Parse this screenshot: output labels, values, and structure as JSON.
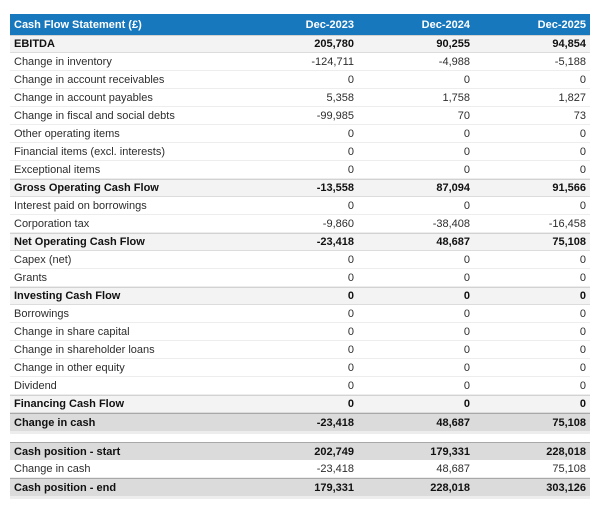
{
  "header": {
    "title": "Cash Flow Statement (£)",
    "columns": [
      "Dec-2023",
      "Dec-2024",
      "Dec-2025"
    ]
  },
  "colors": {
    "header_bg": "#1878be",
    "header_text": "#ffffff",
    "subtotal_row_bg": "#f3f3f3",
    "total_row_bg": "#dbdbdb",
    "body_text": "#2d2d2d"
  },
  "table": {
    "rows": [
      {
        "label": "EBITDA",
        "values": [
          "205,780",
          "90,255",
          "94,854"
        ],
        "style": "subtotal"
      },
      {
        "label": "Change in inventory",
        "values": [
          "-124,711",
          "-4,988",
          "-5,188"
        ],
        "style": "normal"
      },
      {
        "label": "Change in account receivables",
        "values": [
          "0",
          "0",
          "0"
        ],
        "style": "normal"
      },
      {
        "label": "Change in account payables",
        "values": [
          "5,358",
          "1,758",
          "1,827"
        ],
        "style": "normal"
      },
      {
        "label": "Change in fiscal and social debts",
        "values": [
          "-99,985",
          "70",
          "73"
        ],
        "style": "normal"
      },
      {
        "label": "Other operating items",
        "values": [
          "0",
          "0",
          "0"
        ],
        "style": "normal"
      },
      {
        "label": "Financial items (excl. interests)",
        "values": [
          "0",
          "0",
          "0"
        ],
        "style": "normal"
      },
      {
        "label": "Exceptional items",
        "values": [
          "0",
          "0",
          "0"
        ],
        "style": "normal"
      },
      {
        "label": "Gross Operating Cash Flow",
        "values": [
          "-13,558",
          "87,094",
          "91,566"
        ],
        "style": "subtotal"
      },
      {
        "label": "Interest paid on borrowings",
        "values": [
          "0",
          "0",
          "0"
        ],
        "style": "normal"
      },
      {
        "label": "Corporation tax",
        "values": [
          "-9,860",
          "-38,408",
          "-16,458"
        ],
        "style": "normal"
      },
      {
        "label": "Net Operating Cash Flow",
        "values": [
          "-23,418",
          "48,687",
          "75,108"
        ],
        "style": "subtotal"
      },
      {
        "label": "Capex (net)",
        "values": [
          "0",
          "0",
          "0"
        ],
        "style": "normal"
      },
      {
        "label": "Grants",
        "values": [
          "0",
          "0",
          "0"
        ],
        "style": "normal"
      },
      {
        "label": "Investing Cash Flow",
        "values": [
          "0",
          "0",
          "0"
        ],
        "style": "subtotal"
      },
      {
        "label": "Borrowings",
        "values": [
          "0",
          "0",
          "0"
        ],
        "style": "normal"
      },
      {
        "label": "Change in share capital",
        "values": [
          "0",
          "0",
          "0"
        ],
        "style": "normal"
      },
      {
        "label": "Change in shareholder loans",
        "values": [
          "0",
          "0",
          "0"
        ],
        "style": "normal"
      },
      {
        "label": "Change in other equity",
        "values": [
          "0",
          "0",
          "0"
        ],
        "style": "normal"
      },
      {
        "label": "Dividend",
        "values": [
          "0",
          "0",
          "0"
        ],
        "style": "normal"
      },
      {
        "label": "Financing Cash Flow",
        "values": [
          "0",
          "0",
          "0"
        ],
        "style": "subtotal"
      },
      {
        "label": "Change in cash",
        "values": [
          "-23,418",
          "48,687",
          "75,108"
        ],
        "style": "total"
      }
    ]
  },
  "summary": {
    "rows": [
      {
        "label": "Cash position - start",
        "values": [
          "202,749",
          "179,331",
          "228,018"
        ],
        "style": "total"
      },
      {
        "label": "Change in cash",
        "values": [
          "-23,418",
          "48,687",
          "75,108"
        ],
        "style": "normal"
      },
      {
        "label": "Cash position - end",
        "values": [
          "179,331",
          "228,018",
          "303,126"
        ],
        "style": "total"
      }
    ]
  }
}
